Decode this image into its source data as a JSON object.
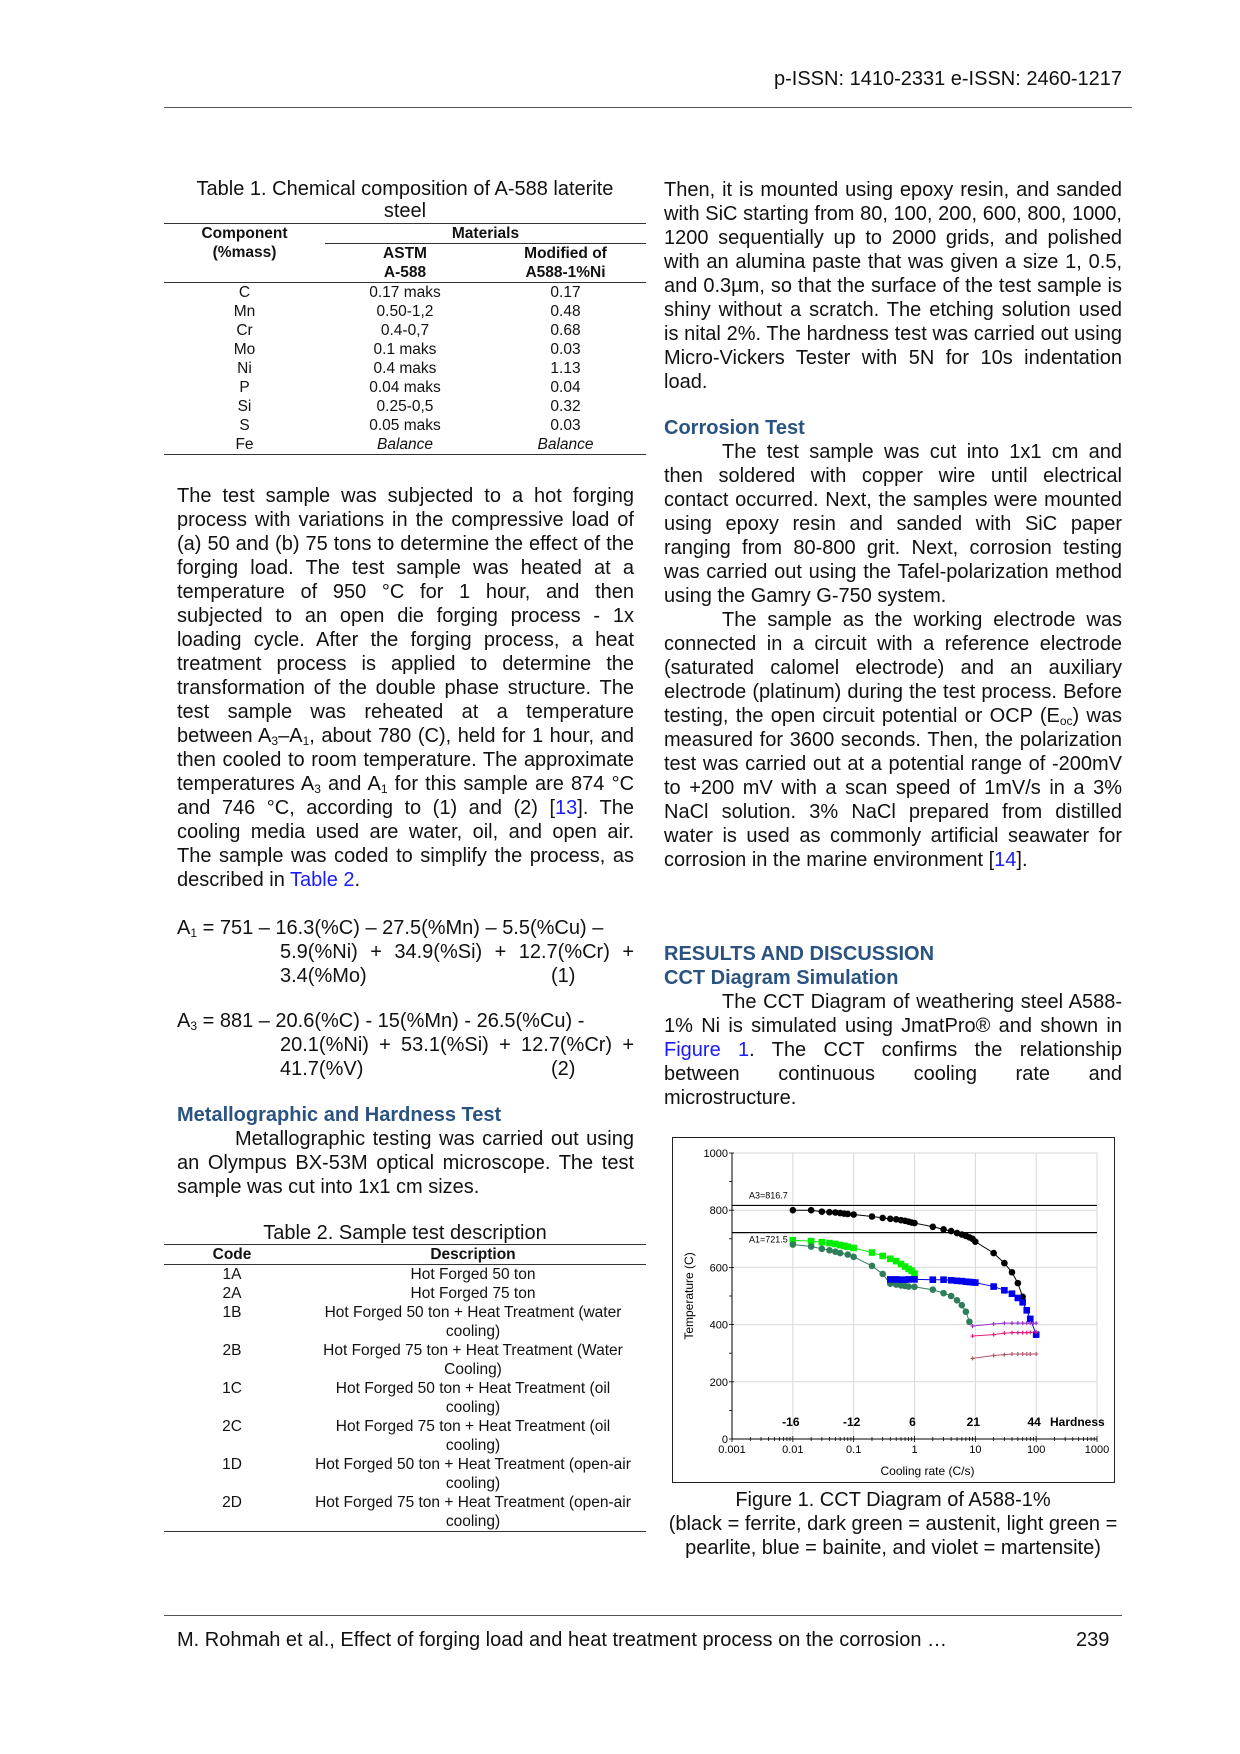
{
  "header": {
    "issn": "p-ISSN: 1410-2331  e-ISSN: 2460-1217"
  },
  "table1": {
    "title": "Table 1. Chemical composition of A-588 laterite steel",
    "col_component": [
      "Component",
      "(%mass)"
    ],
    "col_materials": "Materials",
    "col_astm": [
      "ASTM",
      "A-588"
    ],
    "col_modified": [
      "Modified of",
      "A588-1%Ni"
    ],
    "rows": [
      {
        "c": "C",
        "astm": "0.17 maks",
        "mod": "0.17"
      },
      {
        "c": "Mn",
        "astm": "0.50-1,2",
        "mod": "0.48"
      },
      {
        "c": "Cr",
        "astm": "0.4-0,7",
        "mod": "0.68"
      },
      {
        "c": "Mo",
        "astm": "0.1 maks",
        "mod": "0.03"
      },
      {
        "c": "Ni",
        "astm": "0.4 maks",
        "mod": "1.13"
      },
      {
        "c": "P",
        "astm": "0.04 maks",
        "mod": "0.04"
      },
      {
        "c": "Si",
        "astm": "0.25-0,5",
        "mod": "0.32"
      },
      {
        "c": "S",
        "astm": "0.05 maks",
        "mod": "0.03"
      },
      {
        "c": "Fe",
        "astm": "Balance",
        "mod": "Balance"
      }
    ]
  },
  "left": {
    "para1": [
      {
        "t": "The test sample was subjected to a hot forging process with variations in the compressive load of (a) 50 and (b) 75 tons to determine the effect of the forging load. The test sample was heated at a temperature of 950 °C for 1 hour, and then subjected to an open die forging process - 1x loading cycle. After the forging process, a heat treatment process is applied to determine the transformation of the double phase structure. The test sample was reheated at a temperature between A"
      },
      {
        "t": "3",
        "s": "sub"
      },
      {
        "t": "–A"
      },
      {
        "t": "1",
        "s": "sub"
      },
      {
        "t": ", about 780 (C), held for 1 hour, and then cooled to room temperature. The approximate temperatures A"
      },
      {
        "t": "3",
        "s": "sub"
      },
      {
        "t": " and A"
      },
      {
        "t": "1",
        "s": "sub"
      },
      {
        "t": " for this sample are 874 °C and 746 °C, according to (1) and (2) ["
      },
      {
        "t": "13",
        "s": "link"
      },
      {
        "t": "]. The cooling media used are water, oil, and open air. The sample was coded to simplify the process, as described in "
      },
      {
        "t": "Table 2",
        "s": "link"
      },
      {
        "t": "."
      }
    ],
    "eq1": {
      "lhs": "A",
      "sub": "1",
      "line1": " = 751 – 16.3(%C) – 27.5(%Mn) – 5.5(%Cu) –",
      "line2": "5.9(%Ni) + 34.9(%Si) + 12.7(%Cr) +",
      "line3": "3.4(%Mo)",
      "num": "(1)"
    },
    "eq2": {
      "lhs": "A",
      "sub": "3",
      "line1": " = 881 – 20.6(%C) - 15(%Mn) - 26.5(%Cu) -",
      "line2": "20.1(%Ni) + 53.1(%Si) + 12.7(%Cr) +",
      "line3": "41.7(%V)",
      "num": "(2)"
    },
    "heading_metallo": "Metallographic and Hardness Test",
    "para_metallo": "Metallographic testing was carried out using an Olympus BX-53M optical microscope. The test sample was cut into 1x1 cm sizes."
  },
  "table2": {
    "title": "Table 2. Sample test description",
    "col_code": "Code",
    "col_desc": "Description",
    "rows": [
      {
        "code": "1A",
        "desc": "Hot Forged 50 ton"
      },
      {
        "code": "2A",
        "desc": "Hot Forged 75 ton"
      },
      {
        "code": "1B",
        "desc": "Hot Forged 50 ton + Heat Treatment (water cooling)"
      },
      {
        "code": "2B",
        "desc": "Hot Forged 75 ton + Heat Treatment (Water Cooling)"
      },
      {
        "code": "1C",
        "desc": "Hot Forged 50 ton + Heat Treatment (oil cooling)"
      },
      {
        "code": "2C",
        "desc": "Hot Forged 75 ton + Heat Treatment (oil cooling)"
      },
      {
        "code": "1D",
        "desc": "Hot Forged 50 ton + Heat Treatment (open-air cooling)"
      },
      {
        "code": "2D",
        "desc": "Hot Forged 75 ton + Heat Treatment (open-air cooling)"
      }
    ]
  },
  "right": {
    "para1": "Then, it is mounted using epoxy resin, and sanded with SiC starting from 80, 100, 200, 600, 800, 1000, 1200 sequentially up to 2000 grids, and polished with an alumina paste that was given a size 1, 0.5, and 0.3µm, so that the surface of the test sample is shiny without a scratch. The etching solution used is nital 2%. The hardness test was carried out using Micro-Vickers Tester with 5N for 10s indentation load.",
    "heading_corrosion": "Corrosion Test",
    "para2": "The test sample was cut into 1x1 cm and then soldered with copper wire until electrical contact occurred. Next, the samples were mounted using epoxy resin and sanded with SiC paper ranging from 80-800 grit. Next, corrosion testing was carried out using the Tafel-polarization method using the Gamry G-750 system.",
    "para3": [
      {
        "t": "The sample as the working electrode was connected in a circuit with a reference electrode (saturated calomel electrode) and an auxiliary electrode (platinum) during the test process. Before testing, the open circuit potential or OCP (E"
      },
      {
        "t": "oc",
        "s": "sub"
      },
      {
        "t": ") was measured for 3600 seconds. Then, the polarization test was carried out at a potential range of -200mV to +200 mV with a scan speed of 1mV/s in a 3% NaCl solution. 3% NaCl prepared from distilled water is used as commonly artificial seawater for corrosion in the marine environment ["
      },
      {
        "t": "14",
        "s": "link"
      },
      {
        "t": "]."
      }
    ],
    "heading_results": "RESULTS AND DISCUSSION",
    "heading_cct": "CCT Diagram Simulation",
    "para4": [
      {
        "t": "The CCT Diagram of weathering steel A588-1% Ni is simulated using JmatPro® and shown in "
      },
      {
        "t": "Figure 1",
        "s": "link"
      },
      {
        "t": ". The CCT confirms the relationship between continuous cooling rate and microstructure."
      }
    ],
    "caption_line1": "Figure 1. CCT Diagram of A588-1%",
    "caption_line2": "(black = ferrite, dark green = austenit, light green = pearlite, blue = bainite, and violet = martensite)"
  },
  "chart_data": {
    "type": "line",
    "xlabel": "Cooling rate (C/s)",
    "ylabel": "Temperature (C)",
    "xscale": "log",
    "xlim": [
      0.001,
      1000
    ],
    "ylim": [
      0,
      1000
    ],
    "xticks": [
      "0.001",
      "0.01",
      "0.1",
      "1",
      "10",
      "100",
      "1000"
    ],
    "yticks": [
      "0",
      "200",
      "400",
      "600",
      "800",
      "1000"
    ],
    "grid": true,
    "reference_lines": [
      {
        "label": "A3=816.7",
        "y": 816.7
      },
      {
        "label": "A1=721.5",
        "y": 721.5
      }
    ],
    "hardness_title": "Hardness",
    "hardness": [
      {
        "x": 0.01,
        "label": "-16"
      },
      {
        "x": 0.1,
        "label": "-12"
      },
      {
        "x": 1,
        "label": "6"
      },
      {
        "x": 10,
        "label": "21"
      },
      {
        "x": 100,
        "label": "44"
      }
    ],
    "series": [
      {
        "color": "#000000",
        "marker": "circle",
        "x": [
          0.01,
          0.02,
          0.03,
          0.04,
          0.05,
          0.06,
          0.07,
          0.08,
          0.1,
          0.2,
          0.3,
          0.4,
          0.5,
          0.6,
          0.7,
          0.8,
          0.9,
          1,
          2,
          3,
          4,
          5,
          6,
          7,
          8,
          9,
          10,
          20,
          30,
          40,
          50,
          60
        ],
        "y": [
          800,
          800,
          795,
          793,
          792,
          790,
          788,
          787,
          785,
          778,
          773,
          770,
          768,
          765,
          763,
          760,
          757,
          755,
          742,
          733,
          727,
          720,
          715,
          710,
          705,
          700,
          690,
          650,
          615,
          583,
          545,
          497
        ]
      },
      {
        "color": "#00ee00",
        "marker": "square",
        "x": [
          0.01,
          0.02,
          0.03,
          0.04,
          0.05,
          0.06,
          0.07,
          0.08,
          0.1,
          0.2,
          0.3,
          0.4,
          0.5,
          0.6,
          0.7,
          0.8,
          0.9,
          1
        ],
        "y": [
          695,
          692,
          688,
          685,
          682,
          678,
          675,
          672,
          668,
          652,
          640,
          630,
          622,
          612,
          603,
          595,
          588,
          578
        ]
      },
      {
        "color": "#2e7d5b",
        "marker": "circle",
        "x": [
          0.01,
          0.02,
          0.03,
          0.04,
          0.05,
          0.06,
          0.08,
          0.1,
          0.2,
          0.3,
          0.4,
          0.5,
          0.6,
          0.7,
          0.8,
          1,
          2,
          3,
          4,
          5,
          6,
          7,
          8
        ],
        "y": [
          680,
          673,
          665,
          660,
          655,
          650,
          645,
          637,
          605,
          577,
          543,
          540,
          537,
          535,
          533,
          532,
          522,
          510,
          500,
          485,
          468,
          445,
          410
        ]
      },
      {
        "color": "#0000ee",
        "marker": "square",
        "x": [
          0.4,
          0.5,
          0.6,
          0.7,
          0.8,
          1,
          2,
          3,
          4,
          5,
          6,
          7,
          8,
          9,
          10,
          20,
          30,
          40,
          50,
          60,
          70,
          80,
          100
        ],
        "y": [
          558,
          558,
          557,
          557,
          558,
          558,
          557,
          557,
          555,
          553,
          552,
          550,
          549,
          548,
          547,
          533,
          520,
          508,
          493,
          478,
          450,
          420,
          365
        ]
      },
      {
        "color": "#9933cc",
        "marker": "plus",
        "x": [
          9,
          20,
          30,
          40,
          50,
          60,
          70,
          80,
          90,
          100
        ],
        "y": [
          395,
          402,
          405,
          405,
          405,
          405,
          405,
          405,
          405,
          405
        ]
      },
      {
        "color": "#e0207a",
        "marker": "plus",
        "x": [
          9,
          20,
          30,
          40,
          50,
          60,
          70,
          80,
          100
        ],
        "y": [
          360,
          365,
          370,
          372,
          372,
          372,
          372,
          373,
          374
        ]
      },
      {
        "color": "#b05a6a",
        "marker": "plus",
        "x": [
          9,
          20,
          30,
          40,
          50,
          60,
          70,
          80,
          100
        ],
        "y": [
          282,
          292,
          295,
          297,
          297,
          297,
          297,
          297,
          297
        ]
      }
    ]
  },
  "footer": {
    "citation": "M. Rohmah et al., Effect of forging load and heat treatment process on the corrosion …",
    "page": "239"
  }
}
